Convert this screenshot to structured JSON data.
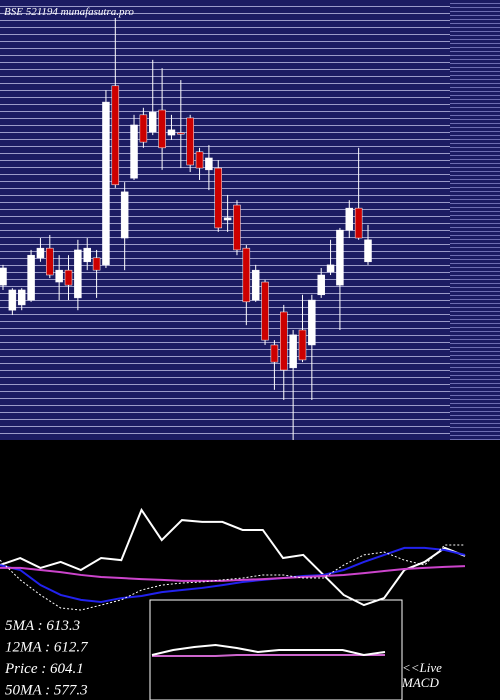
{
  "chart_data": [
    {
      "type": "candlestick",
      "title": "BSE 521194 munafasutra.pro",
      "ylim": [
        564,
        664
      ],
      "up_color": "#ffffff",
      "down_color": "#cc0000",
      "open": [
        599.2,
        593.5,
        594.7,
        595.8,
        605.4,
        607.6,
        599.9,
        602.6,
        596.3,
        604.5,
        605.4,
        603.8,
        644.5,
        609.9,
        623.5,
        637.9,
        634,
        639,
        633.3,
        633.8,
        637.2,
        629.5,
        625.4,
        625.8,
        614,
        617.4,
        607.6,
        595.8,
        599.9,
        585.6,
        593.1,
        580.4,
        589,
        585.6,
        597,
        602.2,
        599.2,
        611.7,
        616.7,
        604.5
      ],
      "high": [
        603.8,
        598.5,
        598.5,
        607.2,
        609.9,
        610.6,
        606,
        606,
        609.5,
        609.9,
        607.2,
        643.5,
        659.9,
        622.6,
        637.9,
        639.5,
        650.4,
        648.5,
        637.9,
        645.8,
        637.9,
        630.4,
        631,
        627.6,
        619.7,
        618.5,
        608.3,
        603.8,
        600.4,
        586.7,
        594.7,
        589,
        597,
        597,
        603.1,
        609.5,
        612.2,
        618.5,
        630.4,
        612.9
      ],
      "low": [
        598.1,
        592.4,
        593.5,
        595.4,
        604.5,
        600.8,
        595.8,
        595.8,
        593.5,
        602.6,
        596.3,
        603.1,
        621.3,
        602.6,
        623.1,
        630.4,
        633.3,
        625.4,
        632.2,
        625.8,
        624.9,
        623.1,
        620.8,
        611.3,
        611.3,
        606,
        590.1,
        595.4,
        585.6,
        575.4,
        573.1,
        564,
        581.7,
        573.1,
        596.3,
        601.5,
        589,
        609.9,
        609.5,
        603.8
      ],
      "close": [
        603.1,
        598.1,
        598.1,
        606,
        607.6,
        601.5,
        602.6,
        599.2,
        607.2,
        607.6,
        602.6,
        640.8,
        622,
        620.4,
        635.6,
        631.7,
        638.5,
        630.4,
        634.5,
        633.5,
        626.5,
        625.8,
        628.1,
        612.2,
        614.5,
        607.2,
        595.4,
        602.6,
        586.7,
        581.7,
        579.9,
        587.9,
        582.2,
        595.8,
        601.5,
        603.8,
        611.7,
        616.7,
        609.9,
        609.5
      ]
    },
    {
      "type": "line",
      "ylim": [
        0,
        100
      ],
      "series": [
        {
          "color": "#ffffff",
          "values": [
            51.9,
            54.6,
            50.8,
            53.1,
            50,
            54.6,
            53.8,
            73.1,
            61.5,
            69.2,
            68.5,
            68.5,
            65.4,
            65.4,
            54.6,
            55.8,
            48.1,
            40.4,
            36.5,
            39.2,
            50,
            53.1,
            58.5,
            55.4
          ]
        },
        {
          "color": "#2222ee",
          "values": [
            51.9,
            50,
            44.2,
            40.4,
            38.5,
            37.7,
            39.2,
            40,
            41.5,
            42.3,
            43.1,
            44.2,
            45.4,
            46.2,
            46.9,
            47.7,
            48.1,
            50,
            53.1,
            55.8,
            58.5,
            58.5,
            57.7,
            55.8
          ]
        },
        {
          "color": "#cc44cc",
          "values": [
            50.8,
            50.8,
            50,
            49.2,
            48.1,
            47.3,
            46.9,
            46.5,
            46.2,
            45.8,
            45.8,
            45.8,
            46.2,
            46.5,
            46.9,
            47.3,
            47.7,
            48.1,
            48.8,
            49.6,
            50.4,
            50.8,
            51.2,
            51.5
          ]
        },
        {
          "color": "#ffffff",
          "dashed": true,
          "values": [
            53.8,
            46.2,
            40.4,
            35.4,
            34.6,
            36.5,
            38.5,
            42.3,
            44.2,
            45,
            45.4,
            46.2,
            46.9,
            48.1,
            48.1,
            46.9,
            46.9,
            51.9,
            55.8,
            56.9,
            53.8,
            51.9,
            59.6,
            59.6
          ]
        }
      ],
      "annotations": [
        "5MA : 613.3",
        "12MA : 612.7",
        "Price  : 604.1",
        "50MA : 577.3"
      ]
    },
    {
      "type": "line",
      "title": "<<Live MACD",
      "ylim": [
        0,
        100
      ],
      "series": [
        {
          "color": "#cc66cc",
          "values": [
            44,
            44,
            44,
            44,
            45,
            45,
            45,
            45,
            45,
            45,
            45,
            45
          ]
        },
        {
          "color": "#ffffff",
          "values": [
            45,
            50,
            53,
            55,
            52,
            48,
            50,
            50,
            50,
            50,
            45,
            48
          ]
        }
      ]
    }
  ]
}
